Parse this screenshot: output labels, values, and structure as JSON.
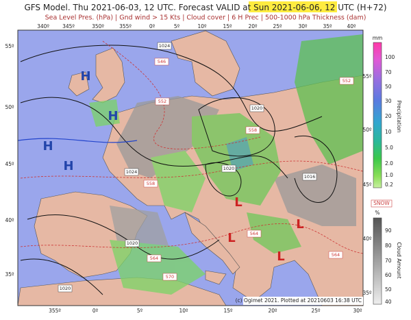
{
  "header": {
    "title_prefix": "GFS Model. Thu 2021-06-03, 12 UTC. Forecast VALID at ",
    "valid_time": "Sun 2021-06-06, 12 UTC",
    "title_suffix": " (H+72)",
    "subtitle": "Sea Level Pres. (hPa) | Gnd wind > 15 Kts | Cloud cover | 6 H Prec | 500-1000 hPa Thickness (dam)"
  },
  "map": {
    "top_longitudes": [
      "340º",
      "345º",
      "350º",
      "355º",
      "0º",
      "5º",
      "10º",
      "15º",
      "20º",
      "25º",
      "30º",
      "35º",
      "40º"
    ],
    "bottom_longitudes": [
      "355º",
      "0º",
      "5º",
      "10º",
      "15º",
      "20º",
      "25º",
      "30º"
    ],
    "left_latitudes": [
      "55º",
      "50º",
      "45º",
      "40º",
      "35º"
    ],
    "right_latitudes": [
      "55º",
      "50º",
      "45º",
      "40º",
      "35º"
    ],
    "contour_labels": [
      "1024",
      "546",
      "552",
      "1020",
      "558",
      "1020",
      "1024",
      "558",
      "1016",
      "1020",
      "564",
      "564",
      "570",
      "552",
      "564",
      "1020"
    ],
    "pressure_centers": [
      "H",
      "H",
      "H",
      "H",
      "L",
      "L",
      "L",
      "L"
    ]
  },
  "legend": {
    "precip_unit": "mm",
    "precip_ticks": [
      "100",
      "70",
      "50",
      "30",
      "20",
      "10",
      "5.0",
      "2.0",
      "1.0",
      "0.2"
    ],
    "precip_title": "Precipitation",
    "snow": "SNOW",
    "cloud_unit": "%",
    "cloud_ticks": [
      "90",
      "80",
      "70",
      "60",
      "50",
      "40"
    ],
    "cloud_title": "Cloud Amount"
  },
  "footer": {
    "credit": "(c) Ogimet 2021. Plotted at 20210603 16:38 UTC"
  }
}
